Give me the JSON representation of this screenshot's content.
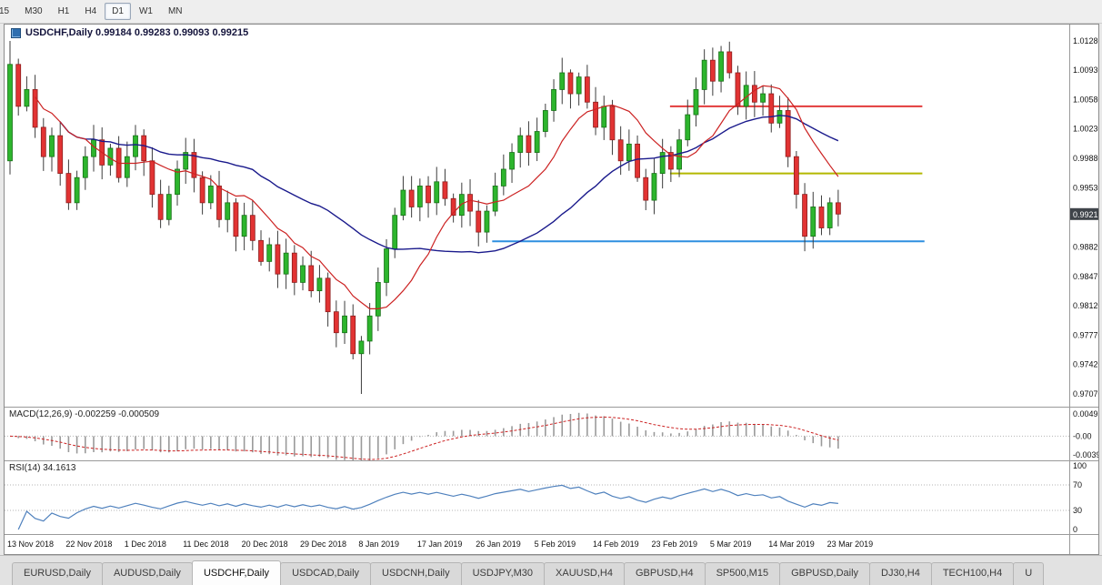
{
  "toolbar": {
    "periods": [
      {
        "label": "15",
        "active": false
      },
      {
        "label": "M30",
        "active": false
      },
      {
        "label": "H1",
        "active": false
      },
      {
        "label": "H4",
        "active": false
      },
      {
        "label": "D1",
        "active": true
      },
      {
        "label": "W1",
        "active": false
      },
      {
        "label": "MN",
        "active": false
      }
    ]
  },
  "chart": {
    "title": "USDCHF,Daily  0.99184 0.99283 0.99093 0.99215"
  },
  "macd_panel": {
    "label": "MACD(12,26,9)",
    "main_value": "-0.002259",
    "signal_value": "-0.000509",
    "scale": [
      "0.004952",
      "-0.00",
      "-0.003905"
    ]
  },
  "rsi_panel": {
    "label": "RSI(14)",
    "value": "34.1613",
    "scale": [
      "100",
      "70",
      "30",
      "0"
    ]
  },
  "chart_data": {
    "type": "candlestick",
    "symbol": "USDCHF",
    "timeframe": "Daily",
    "current_price": 0.99215,
    "price_badge": "0.99215",
    "first_open": 0.9985,
    "closes": [
      1.01,
      1.005,
      1.007,
      1.0025,
      0.999,
      1.0015,
      0.997,
      0.9935,
      0.9965,
      0.999,
      1.001,
      0.998,
      1.0,
      0.9965,
      0.999,
      1.0015,
      0.9985,
      0.9945,
      0.9915,
      0.9945,
      0.9975,
      0.9995,
      0.9965,
      0.9935,
      0.9955,
      0.9915,
      0.9935,
      0.9895,
      0.992,
      0.989,
      0.9865,
      0.9885,
      0.985,
      0.9875,
      0.984,
      0.986,
      0.983,
      0.9845,
      0.9805,
      0.978,
      0.98,
      0.9755,
      0.977,
      0.98,
      0.984,
      0.988,
      0.992,
      0.995,
      0.993,
      0.9955,
      0.9935,
      0.996,
      0.994,
      0.992,
      0.9945,
      0.9925,
      0.99,
      0.9925,
      0.9955,
      0.9975,
      0.9995,
      1.0015,
      0.9995,
      1.002,
      1.0045,
      1.007,
      1.009,
      1.0065,
      1.0085,
      1.0055,
      1.0025,
      1.005,
      1.001,
      0.9985,
      1.0005,
      0.9965,
      0.9938,
      0.997,
      0.9995,
      0.9975,
      1.001,
      1.004,
      1.007,
      1.0105,
      1.008,
      1.0115,
      1.009,
      1.005,
      1.0075,
      1.0055,
      1.0065,
      1.003,
      1.0045,
      0.999,
      0.9945,
      0.9895,
      0.993,
      0.9905,
      0.9935,
      0.99215
    ],
    "special_highs": {
      "0": 1.0128,
      "67": 1.0094,
      "83": 1.0118,
      "85": 1.0122
    },
    "special_lows": {
      "42": 0.9707
    },
    "price_axis_labels": [
      "1.01280",
      "1.00930",
      "1.00580",
      "1.00230",
      "0.99880",
      "0.99530",
      "0.98820",
      "0.98470",
      "0.98120",
      "0.97770",
      "0.97420",
      "0.97070"
    ],
    "hlines": [
      {
        "name": "resistance-line-red",
        "color": "#e23b3b",
        "price": 1.005,
        "x1": 0.625,
        "x2": 0.862
      },
      {
        "name": "support-line-yellow",
        "color": "#b3b800",
        "price": 0.997,
        "x1": 0.625,
        "x2": 0.862
      },
      {
        "name": "support-line-blue",
        "color": "#2e8fe0",
        "price": 0.9889,
        "x1": 0.458,
        "x2": 0.864
      }
    ],
    "date_ticks": [
      {
        "i": 0,
        "label": "13 Nov 2018"
      },
      {
        "i": 7,
        "label": "22 Nov 2018"
      },
      {
        "i": 14,
        "label": "1 Dec 2018"
      },
      {
        "i": 21,
        "label": "11 Dec 2018"
      },
      {
        "i": 28,
        "label": "20 Dec 2018"
      },
      {
        "i": 35,
        "label": "29 Dec 2018"
      },
      {
        "i": 42,
        "label": "8 Jan 2019"
      },
      {
        "i": 49,
        "label": "17 Jan 2019"
      },
      {
        "i": 56,
        "label": "26 Jan 2019"
      },
      {
        "i": 63,
        "label": "5 Feb 2019"
      },
      {
        "i": 70,
        "label": "14 Feb 2019"
      },
      {
        "i": 77,
        "label": "23 Feb 2019"
      },
      {
        "i": 84,
        "label": "5 Mar 2019"
      },
      {
        "i": 91,
        "label": "14 Mar 2019"
      },
      {
        "i": 98,
        "label": "23 Mar 2019"
      }
    ]
  },
  "tabs": [
    {
      "label": "EURUSD,Daily",
      "active": false
    },
    {
      "label": "AUDUSD,Daily",
      "active": false
    },
    {
      "label": "USDCHF,Daily",
      "active": true
    },
    {
      "label": "USDCAD,Daily",
      "active": false
    },
    {
      "label": "USDCNH,Daily",
      "active": false
    },
    {
      "label": "USDJPY,M30",
      "active": false
    },
    {
      "label": "XAUUSD,H4",
      "active": false
    },
    {
      "label": "GBPUSD,H4",
      "active": false
    },
    {
      "label": "SP500,M15",
      "active": false
    },
    {
      "label": "GBPUSD,Daily",
      "active": false
    },
    {
      "label": "DJ30,H4",
      "active": false
    },
    {
      "label": "TECH100,H4",
      "active": false
    },
    {
      "label": "U",
      "active": false
    }
  ],
  "colors": {
    "up": "#2db52d",
    "up_stroke": "#157015",
    "down": "#e23333",
    "down_stroke": "#8d1d1d",
    "wick": "#3c3c3c",
    "ma_fast": "#cc2222",
    "ma_slow": "#1a1a8c",
    "macd_hist": "#9a9a9a",
    "macd_signal": "#cc2222",
    "rsi_line": "#4f81bd",
    "badge_bg": "#3f444a",
    "axis_text": "#111111"
  }
}
